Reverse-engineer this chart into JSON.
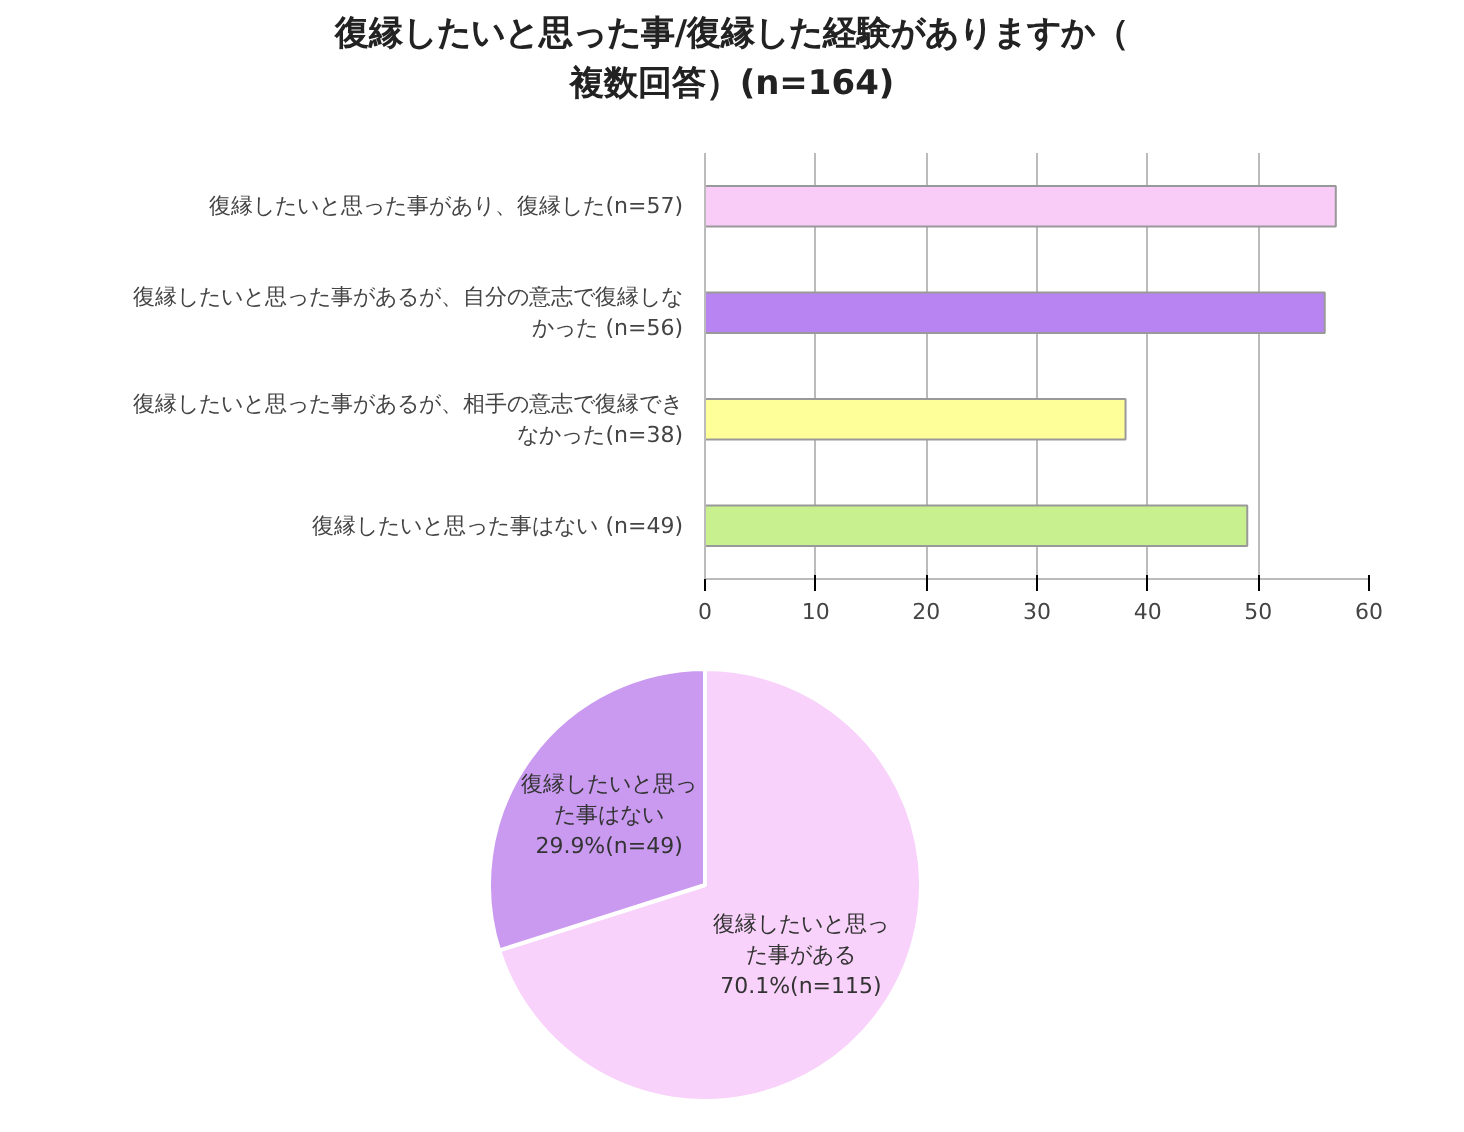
{
  "chart_data": [
    {
      "type": "bar",
      "orientation": "horizontal",
      "title": "復縁したいと思った事/復縁した経験がありますか（複数回答）(n=164)",
      "categories": [
        "復縁したいと思った事があり、復縁した(n=57)",
        "復縁したいと思った事があるが、自分の意志で復縁しなかった (n=56)",
        "復縁したいと思った事があるが、相手の意志で復縁できなかった(n=38)",
        "復縁したいと思った事はない (n=49)"
      ],
      "values": [
        57,
        56,
        38,
        49
      ],
      "colors": [
        "#f8ccf6",
        "#b784f2",
        "#ffff99",
        "#c8f08e"
      ],
      "xlim": [
        0,
        60
      ],
      "xticks": [
        0,
        10,
        20,
        30,
        40,
        50,
        60
      ],
      "grid": "x"
    },
    {
      "type": "pie",
      "categories": [
        "復縁したいと思った事がある",
        "復縁したいと思った事はない"
      ],
      "values": [
        70.1,
        29.9
      ],
      "value_labels": [
        "70.1%(n=115)",
        "29.9%(n=49)"
      ],
      "colors": [
        "#f8d2fa",
        "#c99af0"
      ]
    }
  ]
}
